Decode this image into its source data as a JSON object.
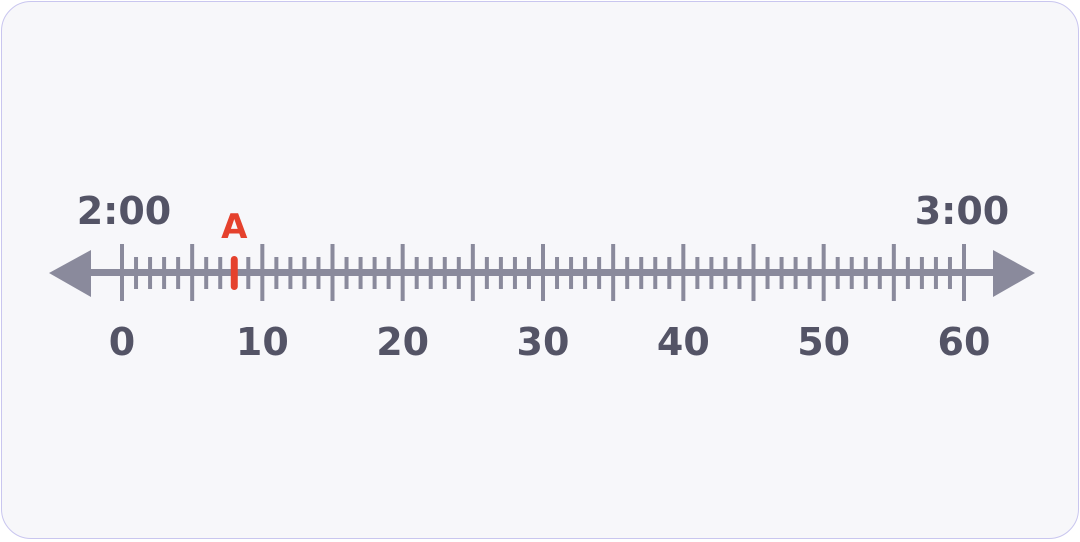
{
  "number_line": {
    "min": 0,
    "max": 60,
    "minor_step": 1,
    "major_step": 5,
    "label_step": 10,
    "start_time_label": "2:00",
    "end_time_label": "3:00",
    "point": {
      "label": "A",
      "value": 8
    },
    "colors": {
      "axis": "#8a8a9c",
      "text": "#545466",
      "point": "#e5412d"
    }
  }
}
